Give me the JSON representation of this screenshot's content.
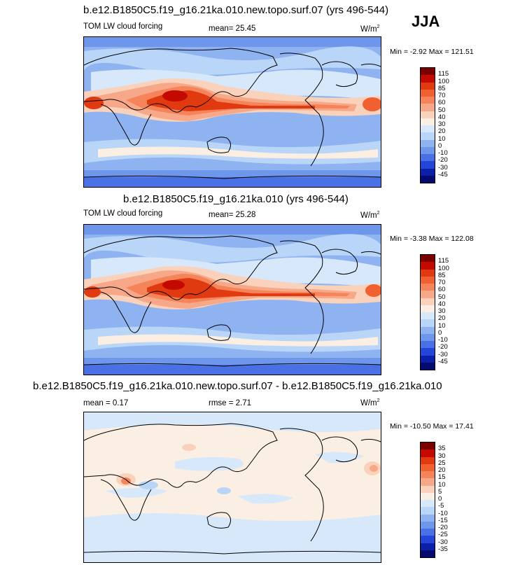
{
  "season": "JJA",
  "panels": [
    {
      "title": "b.e12.B1850C5.f19_g16.21ka.010.new.topo.surf.07 (yrs 496-544)",
      "left_label": "TOM LW cloud forcing",
      "center_label": "mean=  25.45",
      "units": "W/m",
      "units_sup": "2",
      "minmax": "Min =  -2.92 Max = 121.51",
      "colorbar": {
        "labels": [
          "115",
          "100",
          "85",
          "70",
          "60",
          "50",
          "40",
          "30",
          "20",
          "10",
          "0",
          "-10",
          "-20",
          "-30",
          "-45"
        ],
        "colors": [
          "#7a0000",
          "#c40a00",
          "#e23a10",
          "#f06030",
          "#f5845a",
          "#f7a888",
          "#fad2bb",
          "#fbeee2",
          "#d8e8fb",
          "#b9d5f7",
          "#8fb3f0",
          "#6e96ea",
          "#4a70e6",
          "#2346d8",
          "#0c1fa8",
          "#040a6e"
        ]
      }
    },
    {
      "title": "b.e12.B1850C5.f19_g16.21ka.010 (yrs 496-544)",
      "left_label": "TOM LW cloud forcing",
      "center_label": "mean=  25.28",
      "units": "W/m",
      "units_sup": "2",
      "minmax": "Min =  -3.38 Max = 122.08",
      "colorbar": {
        "labels": [
          "115",
          "100",
          "85",
          "70",
          "60",
          "50",
          "40",
          "30",
          "20",
          "10",
          "0",
          "-10",
          "-20",
          "-30",
          "-45"
        ],
        "colors": [
          "#7a0000",
          "#c40a00",
          "#e23a10",
          "#f06030",
          "#f5845a",
          "#f7a888",
          "#fad2bb",
          "#fbeee2",
          "#d8e8fb",
          "#b9d5f7",
          "#8fb3f0",
          "#6e96ea",
          "#4a70e6",
          "#2346d8",
          "#0c1fa8",
          "#040a6e"
        ]
      }
    },
    {
      "title": "b.e12.B1850C5.f19_g16.21ka.010.new.topo.surf.07 - b.e12.B1850C5.f19_g16.21ka.010",
      "left_label": "mean =   0.17",
      "center_label": "rmse =   2.71",
      "units": "W/m",
      "units_sup": "2",
      "minmax": "Min = -10.50 Max =  17.41",
      "colorbar": {
        "labels": [
          "35",
          "30",
          "25",
          "20",
          "15",
          "10",
          "5",
          "0",
          "-5",
          "-10",
          "-15",
          "-20",
          "-25",
          "-30",
          "-35"
        ],
        "colors": [
          "#7a0000",
          "#c40a00",
          "#e23a10",
          "#f06030",
          "#f5845a",
          "#f7a888",
          "#fad2bb",
          "#fbeee2",
          "#d8e8fb",
          "#b9d5f7",
          "#8fb3f0",
          "#6e96ea",
          "#4a70e6",
          "#2346d8",
          "#0c1fa8",
          "#040a6e"
        ]
      }
    }
  ]
}
